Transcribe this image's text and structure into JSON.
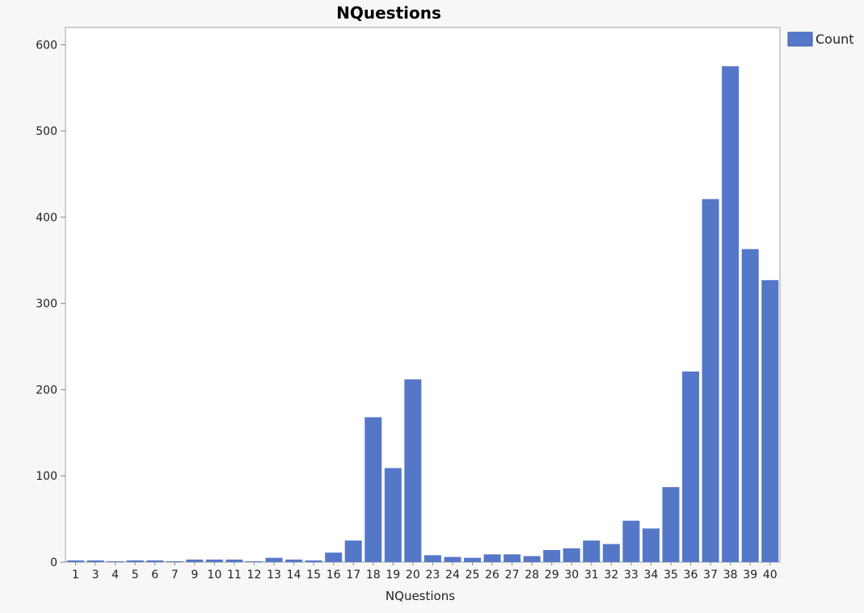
{
  "chart_data": {
    "type": "bar",
    "title": "NQuestions",
    "xlabel": "NQuestions",
    "ylabel": "",
    "ylim": [
      0,
      620
    ],
    "yticks": [
      0,
      100,
      200,
      300,
      400,
      500,
      600
    ],
    "grid": false,
    "legend_position": "top-right",
    "categories": [
      "1",
      "3",
      "4",
      "5",
      "6",
      "7",
      "9",
      "10",
      "11",
      "12",
      "13",
      "14",
      "15",
      "16",
      "17",
      "18",
      "19",
      "20",
      "23",
      "24",
      "25",
      "26",
      "27",
      "28",
      "29",
      "30",
      "31",
      "32",
      "33",
      "34",
      "35",
      "36",
      "37",
      "38",
      "39",
      "40"
    ],
    "series": [
      {
        "name": "Count",
        "color": "#5577c8",
        "values": [
          2,
          2,
          1,
          2,
          2,
          1,
          3,
          3,
          3,
          1,
          5,
          3,
          2,
          11,
          25,
          168,
          109,
          212,
          8,
          6,
          5,
          9,
          9,
          7,
          14,
          16,
          25,
          21,
          48,
          39,
          87,
          221,
          421,
          575,
          363,
          327
        ]
      }
    ]
  }
}
